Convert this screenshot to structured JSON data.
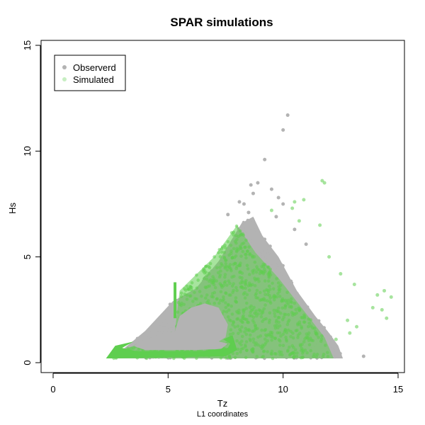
{
  "chart_data": {
    "type": "scatter",
    "title": "SPAR simulations",
    "xlabel": "Tz",
    "xsublabel": "L1 coordinates",
    "ylabel": "Hs",
    "xlim": [
      0,
      15
    ],
    "ylim": [
      0,
      15
    ],
    "xticks": [
      "0",
      "5",
      "10",
      "15"
    ],
    "yticks": [
      "0",
      "5",
      "10",
      "15"
    ],
    "legend": {
      "position": "top-left",
      "entries": [
        "Observerd",
        "Simulated"
      ]
    },
    "colors": {
      "observed": "#b3b3b3",
      "simulated": "#5fce4f"
    },
    "series": [
      {
        "name": "Observerd",
        "region": [
          [
            2.3,
            0.2
          ],
          [
            3.0,
            0.6
          ],
          [
            4.0,
            1.5
          ],
          [
            5.2,
            2.9
          ],
          [
            6.2,
            3.5
          ],
          [
            7.2,
            4.8
          ],
          [
            8.2,
            6.6
          ],
          [
            8.7,
            6.9
          ],
          [
            9.1,
            6.0
          ],
          [
            9.8,
            5.0
          ],
          [
            10.6,
            3.4
          ],
          [
            11.4,
            2.2
          ],
          [
            12.0,
            1.4
          ],
          [
            12.4,
            0.8
          ],
          [
            12.6,
            0.2
          ]
        ],
        "outliers": [
          [
            10.2,
            11.7
          ],
          [
            10.0,
            11.0
          ],
          [
            9.2,
            9.6
          ],
          [
            8.9,
            8.5
          ],
          [
            8.6,
            8.4
          ],
          [
            8.7,
            8.0
          ],
          [
            9.5,
            8.2
          ],
          [
            8.3,
            7.5
          ],
          [
            10.0,
            7.5
          ],
          [
            9.8,
            7.8
          ],
          [
            7.6,
            7.0
          ],
          [
            8.1,
            7.6
          ],
          [
            8.5,
            7.1
          ],
          [
            9.7,
            6.9
          ],
          [
            10.5,
            6.3
          ],
          [
            11.0,
            5.6
          ],
          [
            13.5,
            0.3
          ]
        ]
      },
      {
        "name": "Simulated",
        "region": [
          [
            2.3,
            0.2
          ],
          [
            3.0,
            0.6
          ],
          [
            5.3,
            1.5
          ],
          [
            5.5,
            3.4
          ],
          [
            7.0,
            5.0
          ],
          [
            8.0,
            6.5
          ],
          [
            8.8,
            5.2
          ],
          [
            9.8,
            4.0
          ],
          [
            10.8,
            2.6
          ],
          [
            11.8,
            1.2
          ],
          [
            12.2,
            0.2
          ]
        ],
        "outliers": [
          [
            11.8,
            8.5
          ],
          [
            11.7,
            8.6
          ],
          [
            10.9,
            7.7
          ],
          [
            10.5,
            7.6
          ],
          [
            10.4,
            7.3
          ],
          [
            9.5,
            7.2
          ],
          [
            11.6,
            6.5
          ],
          [
            10.7,
            6.7
          ],
          [
            12.0,
            5.0
          ],
          [
            12.5,
            4.2
          ],
          [
            13.1,
            3.7
          ],
          [
            14.1,
            3.2
          ],
          [
            14.4,
            3.4
          ],
          [
            14.7,
            3.1
          ],
          [
            13.9,
            2.6
          ],
          [
            14.3,
            2.5
          ],
          [
            14.5,
            2.1
          ],
          [
            13.2,
            1.7
          ],
          [
            12.8,
            2.0
          ],
          [
            12.9,
            1.4
          ],
          [
            12.3,
            1.1
          ]
        ]
      }
    ]
  }
}
